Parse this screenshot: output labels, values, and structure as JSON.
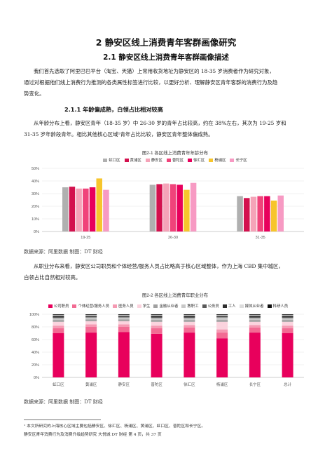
{
  "heading1": "2  静安区线上消费青年客群画像研究",
  "heading2": "2.1   静安区线上消费青年客群画像描述",
  "para1_line1": "我们首先选取了阿里巴巴平台（淘宝、天猫）上常用收货地址为静安区的 18-35 岁消费者作为研究对象，",
  "para1_line2": "通过对根据他们线上消费行为推测的各类属性标签进行比较，以更好分析、理解静安区青年客群的消费行为及趋",
  "para1_line3": "势变化。",
  "heading3": "2.1.1 年龄偏成熟，白领占比相对较高",
  "para2_line1": "从年龄分布上看，静安区青年（18-35 岁）中 26-30 岁的青年占比较高，约在 38%左右，其次为 19-25 岁和",
  "para2_line2": "31-35 岁年龄段青年。相比其他核心区域¹青年占比比较，静安区青年整体偏成熟。",
  "source1": "数据来源：阿里数据      制图：DT 财经",
  "para3_line1": "从职业分布来看，静安区公司职员和个体经营/服务人员占比略高于核心区域整体，作为上海 CBD 集中城区，",
  "para3_line2": "白领占比自然相对较高。",
  "source2": "数据来源：阿里数据      制图：DT 财经",
  "footnote": "¹ 本文所研究的上海核心区域主要包括静安区、徐汇区、杨浦区、黄浦区、虹口区、普陀区和长宁区。",
  "footer": "静安区青年消费行为及消费升级趋势研究    大悦城  DT 财经  第 4 页，共 37 页",
  "colors": {
    "hongkou": "#b0b0b0",
    "huangpu": "#d3114e",
    "jingan": "#f5a3b8",
    "putuo": "#f0437a",
    "xuhui": "#e8005c",
    "yangpu": "#f7c52c",
    "changning": "#f79ac3"
  },
  "chart_data": [
    {
      "type": "bar",
      "title": "图2-1 各区线上消费青年年龄分布",
      "categories": [
        "19-25",
        "26-30",
        "31-35"
      ],
      "series": [
        {
          "name": "虹口区",
          "values": [
            35,
            37,
            28
          ]
        },
        {
          "name": "黄浦区",
          "values": [
            35.5,
            37.5,
            26.5
          ]
        },
        {
          "name": "静安区",
          "values": [
            34,
            38,
            27.5
          ]
        },
        {
          "name": "普陀区",
          "values": [
            34,
            37.5,
            28
          ]
        },
        {
          "name": "徐汇区",
          "values": [
            35,
            37,
            28
          ]
        },
        {
          "name": "杨浦区",
          "values": [
            42,
            33,
            24.5
          ]
        },
        {
          "name": "长宁区",
          "values": [
            33,
            38.5,
            28.5
          ]
        }
      ],
      "ylim": [
        0,
        50
      ],
      "yticks": [
        "0%",
        "10%",
        "20%",
        "30%",
        "40%",
        "50%"
      ],
      "legend": "top"
    },
    {
      "type": "bar",
      "stacked": true,
      "title": "图2-2 各区线上消费青年职业分布",
      "categories": [
        "虹口区",
        "黄浦区",
        "静安区",
        "普陀区",
        "徐汇区",
        "杨浦区",
        "长宁区",
        "总计"
      ],
      "series": [
        {
          "name": "公司职员",
          "color": "#e8005c",
          "values": [
            70,
            71,
            72,
            69,
            71,
            62,
            71,
            70
          ]
        },
        {
          "name": "个体经营/服务人员",
          "color": "#f26b93",
          "values": [
            8,
            9,
            8,
            9,
            8,
            9,
            8,
            8
          ]
        },
        {
          "name": "医务人员",
          "color": "#f59ab3",
          "values": [
            4,
            4,
            4,
            4,
            4,
            5,
            4,
            4
          ]
        },
        {
          "name": "学生",
          "color": "#fbd3de",
          "values": [
            6,
            5,
            5,
            6,
            5,
            12,
            5,
            6
          ]
        },
        {
          "name": "金融从业者",
          "color": "#a0a0a0",
          "values": [
            3,
            3,
            3,
            3,
            3,
            3,
            3,
            3
          ]
        },
        {
          "name": "教职工",
          "color": "#c8c8c8",
          "values": [
            3,
            3,
            3,
            3,
            3,
            4,
            3,
            3
          ]
        },
        {
          "name": "公务员",
          "color": "#5a5a5a",
          "values": [
            2,
            2,
            2,
            2,
            2,
            2,
            2,
            2
          ]
        },
        {
          "name": "工人",
          "color": "#2e2e2e",
          "values": [
            2,
            1,
            1,
            2,
            2,
            1,
            2,
            2
          ]
        },
        {
          "name": "媒体从业者",
          "color": "#dcdcdc",
          "values": [
            1,
            1,
            1,
            1,
            1,
            1,
            1,
            1
          ]
        },
        {
          "name": "科研人员",
          "color": "#111111",
          "values": [
            1,
            1,
            1,
            1,
            1,
            1,
            1,
            1
          ]
        }
      ],
      "ylim": [
        0,
        100
      ],
      "yticks": [
        "0%",
        "20%",
        "40%",
        "60%",
        "80%",
        "100%"
      ],
      "legend": "top"
    }
  ]
}
